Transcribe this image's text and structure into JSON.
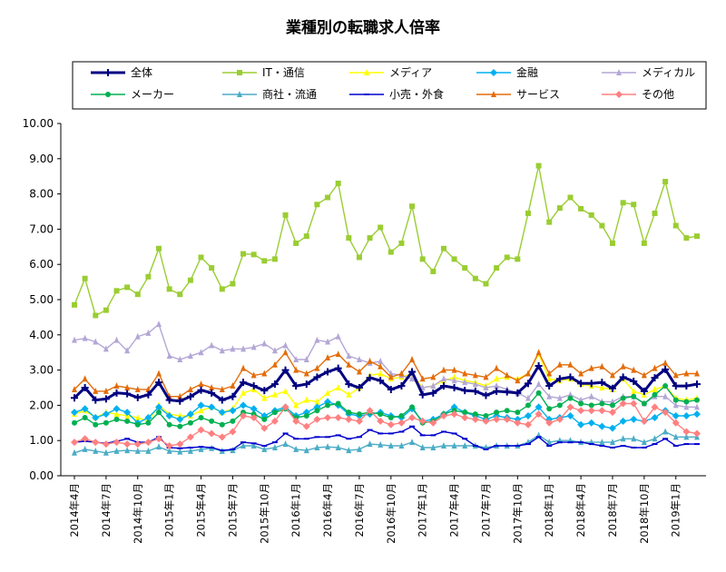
{
  "chart_data": {
    "type": "line",
    "title": "業種別の転職求人倍率",
    "xlabel": "",
    "ylabel": "",
    "ylim": [
      0,
      10
    ],
    "yticks": [
      "0.00",
      "1.00",
      "2.00",
      "3.00",
      "4.00",
      "5.00",
      "6.00",
      "7.00",
      "8.00",
      "9.00",
      "10.00"
    ],
    "x": [
      "2014年4月",
      "2014年5月",
      "2014年6月",
      "2014年7月",
      "2014年8月",
      "2014年9月",
      "2014年10月",
      "2014年11月",
      "2014年12月",
      "2015年1月",
      "2015年2月",
      "2015年3月",
      "2015年4月",
      "2015年5月",
      "2015年6月",
      "2015年7月",
      "2015年8月",
      "2015年9月",
      "2015年10月",
      "2015年11月",
      "2015年12月",
      "2016年1月",
      "2016年2月",
      "2016年3月",
      "2016年4月",
      "2016年5月",
      "2016年6月",
      "2016年7月",
      "2016年8月",
      "2016年9月",
      "2016年10月",
      "2016年11月",
      "2016年12月",
      "2017年1月",
      "2017年2月",
      "2017年3月",
      "2017年4月",
      "2017年5月",
      "2017年6月",
      "2017年7月",
      "2017年8月",
      "2017年9月",
      "2017年10月",
      "2017年11月",
      "2017年12月",
      "2018年1月",
      "2018年2月",
      "2018年3月",
      "2018年4月",
      "2018年5月",
      "2018年6月",
      "2018年7月",
      "2018年8月",
      "2018年9月",
      "2018年10月",
      "2018年11月",
      "2018年12月",
      "2019年1月",
      "2019年2月",
      "2019年3月"
    ],
    "xticks": [
      "2014年4月",
      "2014年7月",
      "2014年10月",
      "2015年1月",
      "2015年4月",
      "2015年7月",
      "2015年10月",
      "2016年1月",
      "2016年4月",
      "2016年7月",
      "2016年10月",
      "2017年1月",
      "2017年4月",
      "2017年7月",
      "2017年10月",
      "2018年1月",
      "2018年4月",
      "2018年7月",
      "2018年10月",
      "2019年1月"
    ],
    "legend_position": "top",
    "grid": false,
    "series": [
      {
        "name": "全体",
        "color": "#000080",
        "marker": "plus",
        "bold": true,
        "values": [
          2.21,
          2.5,
          2.15,
          2.18,
          2.35,
          2.33,
          2.22,
          2.3,
          2.65,
          2.15,
          2.12,
          2.25,
          2.43,
          2.35,
          2.15,
          2.25,
          2.65,
          2.55,
          2.42,
          2.6,
          3.0,
          2.55,
          2.6,
          2.8,
          2.95,
          3.05,
          2.6,
          2.5,
          2.78,
          2.7,
          2.45,
          2.55,
          2.95,
          2.3,
          2.35,
          2.55,
          2.5,
          2.42,
          2.4,
          2.28,
          2.4,
          2.38,
          2.35,
          2.62,
          3.12,
          2.55,
          2.75,
          2.8,
          2.62,
          2.62,
          2.65,
          2.48,
          2.8,
          2.68,
          2.4,
          2.78,
          3.02,
          2.55,
          2.55,
          2.6
        ]
      },
      {
        "name": "IT・通信",
        "color": "#9ACD32",
        "marker": "square",
        "values": [
          4.85,
          5.6,
          4.55,
          4.7,
          5.25,
          5.35,
          5.15,
          5.65,
          6.45,
          5.3,
          5.15,
          5.55,
          6.2,
          5.9,
          5.3,
          5.45,
          6.3,
          6.28,
          6.1,
          6.15,
          7.4,
          6.6,
          6.8,
          7.7,
          7.9,
          8.3,
          6.75,
          6.2,
          6.75,
          7.05,
          6.35,
          6.6,
          7.65,
          6.15,
          5.8,
          6.45,
          6.15,
          5.9,
          5.6,
          5.45,
          5.9,
          6.2,
          6.15,
          7.45,
          8.8,
          7.2,
          7.6,
          7.9,
          7.58,
          7.4,
          7.1,
          6.6,
          7.75,
          7.7,
          6.6,
          7.45,
          8.35,
          7.1,
          6.75,
          6.8
        ]
      },
      {
        "name": "メディア",
        "color": "#FFFF00",
        "marker": "triangle",
        "values": [
          1.75,
          1.85,
          1.65,
          1.8,
          1.75,
          1.7,
          1.65,
          1.55,
          2.0,
          1.75,
          1.7,
          1.7,
          1.85,
          1.95,
          1.8,
          1.9,
          2.35,
          2.45,
          2.2,
          2.3,
          2.4,
          2.0,
          2.15,
          2.1,
          2.35,
          2.5,
          2.3,
          2.5,
          2.85,
          2.9,
          2.75,
          2.8,
          2.9,
          2.5,
          2.55,
          2.7,
          2.8,
          2.7,
          2.65,
          2.55,
          2.75,
          2.8,
          2.75,
          2.9,
          3.45,
          2.75,
          2.7,
          2.75,
          2.6,
          2.55,
          2.5,
          2.45,
          2.75,
          2.4,
          2.3,
          2.45,
          2.55,
          2.2,
          2.15,
          2.2
        ]
      },
      {
        "name": "金融",
        "color": "#00B0F0",
        "marker": "diamond",
        "values": [
          1.8,
          1.9,
          1.65,
          1.75,
          1.9,
          1.8,
          1.5,
          1.65,
          1.95,
          1.7,
          1.6,
          1.75,
          2.0,
          1.95,
          1.8,
          1.85,
          2.0,
          1.9,
          1.7,
          1.85,
          1.95,
          1.7,
          1.8,
          1.95,
          2.1,
          2.0,
          1.75,
          1.7,
          1.75,
          1.8,
          1.7,
          1.65,
          1.9,
          1.55,
          1.6,
          1.75,
          1.95,
          1.8,
          1.7,
          1.6,
          1.7,
          1.65,
          1.6,
          1.7,
          1.95,
          1.6,
          1.65,
          1.7,
          1.45,
          1.5,
          1.4,
          1.35,
          1.55,
          1.6,
          1.55,
          1.65,
          1.85,
          1.7,
          1.7,
          1.75
        ]
      },
      {
        "name": "メディカル",
        "color": "#B4A7D6",
        "marker": "triangle",
        "values": [
          3.85,
          3.9,
          3.8,
          3.6,
          3.85,
          3.55,
          3.95,
          4.05,
          4.3,
          3.4,
          3.3,
          3.4,
          3.5,
          3.7,
          3.55,
          3.6,
          3.6,
          3.65,
          3.75,
          3.55,
          3.7,
          3.3,
          3.3,
          3.85,
          3.8,
          3.95,
          3.4,
          3.3,
          3.2,
          3.25,
          2.9,
          2.85,
          2.75,
          2.5,
          2.55,
          2.75,
          2.7,
          2.65,
          2.6,
          2.5,
          2.55,
          2.45,
          2.35,
          2.2,
          2.6,
          2.25,
          2.2,
          2.3,
          2.15,
          2.25,
          2.1,
          2.1,
          2.25,
          2.25,
          2.05,
          2.25,
          2.25,
          2.0,
          1.95,
          1.95
        ]
      },
      {
        "name": "メーカー",
        "color": "#00B050",
        "marker": "circle",
        "values": [
          1.5,
          1.65,
          1.45,
          1.5,
          1.6,
          1.55,
          1.45,
          1.5,
          1.8,
          1.45,
          1.4,
          1.5,
          1.65,
          1.55,
          1.45,
          1.55,
          1.8,
          1.75,
          1.6,
          1.8,
          1.9,
          1.65,
          1.7,
          1.85,
          2.0,
          2.05,
          1.8,
          1.75,
          1.8,
          1.75,
          1.65,
          1.7,
          1.95,
          1.5,
          1.55,
          1.75,
          1.85,
          1.8,
          1.75,
          1.7,
          1.8,
          1.85,
          1.8,
          2.0,
          2.35,
          1.9,
          2.0,
          2.2,
          2.05,
          2.0,
          2.05,
          2.0,
          2.2,
          2.25,
          2.05,
          2.3,
          2.55,
          2.15,
          2.1,
          2.15
        ]
      },
      {
        "name": "商社・流通",
        "color": "#4BACC6",
        "marker": "triangle",
        "values": [
          0.65,
          0.75,
          0.7,
          0.65,
          0.7,
          0.72,
          0.7,
          0.7,
          0.82,
          0.7,
          0.68,
          0.7,
          0.75,
          0.78,
          0.7,
          0.72,
          0.85,
          0.85,
          0.75,
          0.8,
          0.9,
          0.75,
          0.72,
          0.8,
          0.82,
          0.8,
          0.72,
          0.75,
          0.9,
          0.88,
          0.85,
          0.85,
          0.95,
          0.8,
          0.8,
          0.85,
          0.85,
          0.85,
          0.85,
          0.8,
          0.85,
          0.85,
          0.85,
          0.95,
          1.15,
          0.95,
          1.0,
          1.0,
          0.95,
          0.95,
          0.95,
          0.95,
          1.05,
          1.05,
          0.95,
          1.05,
          1.25,
          1.1,
          1.1,
          1.1
        ]
      },
      {
        "name": "小売・外食",
        "color": "#0000CD",
        "marker": "dash",
        "values": [
          0.95,
          0.98,
          0.95,
          0.92,
          0.98,
          1.05,
          0.95,
          0.95,
          1.1,
          0.8,
          0.78,
          0.8,
          0.82,
          0.8,
          0.72,
          0.75,
          0.95,
          0.92,
          0.85,
          0.95,
          1.2,
          1.05,
          1.05,
          1.1,
          1.1,
          1.15,
          1.05,
          1.1,
          1.3,
          1.2,
          1.2,
          1.25,
          1.4,
          1.15,
          1.15,
          1.25,
          1.2,
          1.05,
          0.85,
          0.75,
          0.85,
          0.85,
          0.85,
          0.9,
          1.1,
          0.85,
          0.95,
          0.95,
          0.95,
          0.9,
          0.85,
          0.8,
          0.85,
          0.8,
          0.8,
          0.9,
          1.05,
          0.85,
          0.9,
          0.9
        ]
      },
      {
        "name": "サービス",
        "color": "#E36C0A",
        "marker": "triangle",
        "values": [
          2.45,
          2.75,
          2.4,
          2.4,
          2.55,
          2.5,
          2.45,
          2.45,
          2.9,
          2.25,
          2.25,
          2.45,
          2.6,
          2.5,
          2.45,
          2.55,
          3.05,
          2.85,
          2.9,
          3.15,
          3.5,
          3.0,
          2.9,
          3.05,
          3.35,
          3.45,
          3.15,
          2.95,
          3.25,
          3.1,
          2.8,
          2.9,
          3.3,
          2.75,
          2.8,
          3.0,
          3.0,
          2.9,
          2.85,
          2.8,
          3.05,
          2.85,
          2.7,
          2.9,
          3.5,
          2.9,
          3.15,
          3.15,
          2.9,
          3.05,
          3.1,
          2.85,
          3.1,
          3.0,
          2.85,
          3.05,
          3.2,
          2.85,
          2.9,
          2.9
        ]
      },
      {
        "name": "その他",
        "color": "#FF8080",
        "marker": "diamond",
        "values": [
          0.95,
          1.05,
          0.95,
          0.9,
          0.95,
          0.9,
          0.9,
          0.95,
          1.05,
          0.85,
          0.9,
          1.1,
          1.3,
          1.2,
          1.1,
          1.25,
          1.7,
          1.65,
          1.35,
          1.55,
          1.95,
          1.55,
          1.4,
          1.6,
          1.65,
          1.65,
          1.6,
          1.55,
          1.85,
          1.55,
          1.45,
          1.5,
          1.65,
          1.55,
          1.5,
          1.7,
          1.75,
          1.65,
          1.6,
          1.55,
          1.6,
          1.6,
          1.5,
          1.45,
          1.75,
          1.5,
          1.6,
          1.95,
          1.85,
          1.85,
          1.85,
          1.8,
          2.05,
          2.05,
          1.55,
          1.95,
          1.8,
          1.5,
          1.25,
          1.2
        ]
      }
    ]
  }
}
